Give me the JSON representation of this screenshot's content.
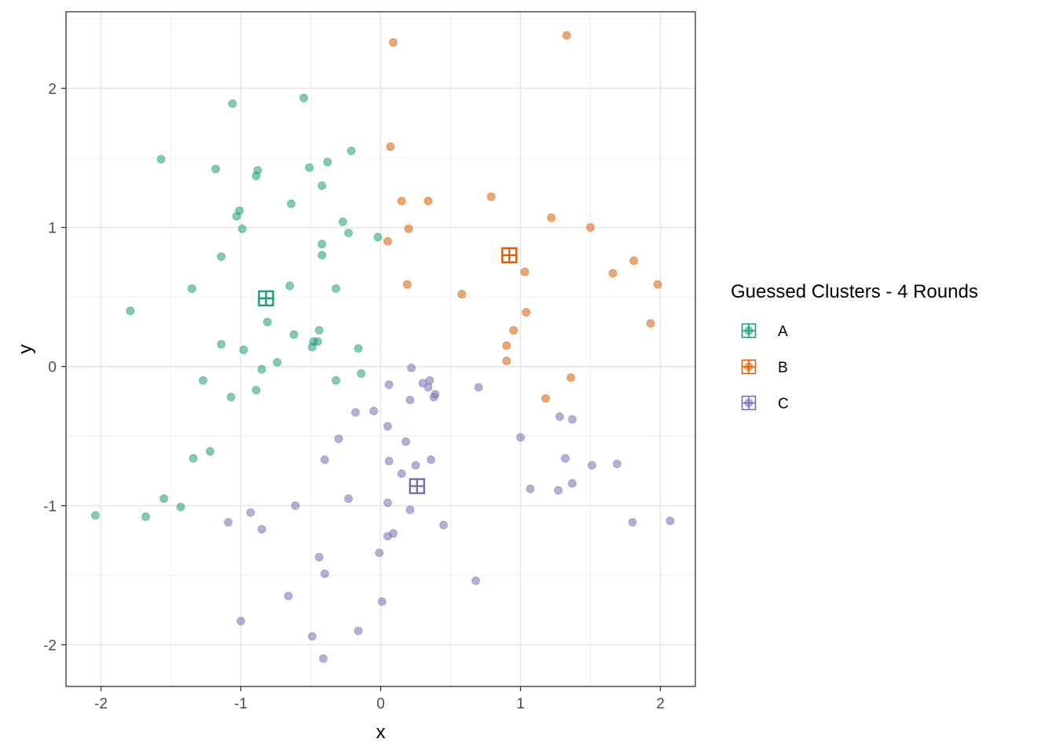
{
  "chart_data": {
    "type": "scatter",
    "xlabel": "x",
    "ylabel": "y",
    "xlim": [
      -2.25,
      2.25
    ],
    "ylim": [
      -2.3,
      2.55
    ],
    "x_ticks": [
      -2,
      -1,
      0,
      1,
      2
    ],
    "y_ticks": [
      -2,
      -1,
      0,
      1,
      2
    ],
    "x_tick_labels": [
      "-2",
      "-1",
      "0",
      "1",
      "2"
    ],
    "y_tick_labels": [
      "-2",
      "-1",
      "0",
      "1",
      "2"
    ],
    "grid": true,
    "legend": {
      "title": "Guessed Clusters - 4 Rounds",
      "placement": "right",
      "entries": [
        "A",
        "B",
        "C"
      ]
    },
    "colors": {
      "A": "#1B9E77",
      "B": "#D95F02",
      "C": "#7570B3"
    },
    "series": [
      {
        "name": "A",
        "centroid": [
          -0.82,
          0.49
        ],
        "points": [
          [
            -1.06,
            1.89
          ],
          [
            -0.55,
            1.93
          ],
          [
            -1.57,
            1.49
          ],
          [
            -1.18,
            1.42
          ],
          [
            -0.88,
            1.41
          ],
          [
            -0.89,
            1.37
          ],
          [
            -0.51,
            1.43
          ],
          [
            -0.38,
            1.47
          ],
          [
            -0.21,
            1.55
          ],
          [
            -0.42,
            1.3
          ],
          [
            -1.01,
            1.12
          ],
          [
            -1.03,
            1.08
          ],
          [
            -0.64,
            1.17
          ],
          [
            -0.99,
            0.99
          ],
          [
            -0.27,
            1.04
          ],
          [
            -0.23,
            0.96
          ],
          [
            -0.02,
            0.93
          ],
          [
            -0.42,
            0.88
          ],
          [
            -0.42,
            0.8
          ],
          [
            -1.14,
            0.79
          ],
          [
            -1.35,
            0.56
          ],
          [
            -0.65,
            0.58
          ],
          [
            -0.32,
            0.56
          ],
          [
            -1.79,
            0.4
          ],
          [
            -0.81,
            0.32
          ],
          [
            -0.44,
            0.26
          ],
          [
            -0.62,
            0.23
          ],
          [
            -0.48,
            0.18
          ],
          [
            -0.45,
            0.18
          ],
          [
            -0.49,
            0.14
          ],
          [
            -1.14,
            0.16
          ],
          [
            -0.98,
            0.12
          ],
          [
            -0.16,
            0.13
          ],
          [
            -0.74,
            0.03
          ],
          [
            -0.85,
            -0.02
          ],
          [
            -0.14,
            -0.05
          ],
          [
            -1.27,
            -0.1
          ],
          [
            -0.32,
            -0.1
          ],
          [
            -0.89,
            -0.17
          ],
          [
            -1.07,
            -0.22
          ],
          [
            -1.22,
            -0.61
          ],
          [
            -1.34,
            -0.66
          ],
          [
            -1.55,
            -0.95
          ],
          [
            -1.43,
            -1.01
          ],
          [
            -2.04,
            -1.07
          ],
          [
            -1.68,
            -1.08
          ]
        ]
      },
      {
        "name": "B",
        "centroid": [
          0.92,
          0.8
        ],
        "points": [
          [
            0.09,
            2.33
          ],
          [
            1.33,
            2.38
          ],
          [
            0.07,
            1.58
          ],
          [
            0.15,
            1.19
          ],
          [
            0.34,
            1.19
          ],
          [
            0.79,
            1.22
          ],
          [
            1.22,
            1.07
          ],
          [
            0.2,
            0.99
          ],
          [
            1.5,
            1.0
          ],
          [
            0.05,
            0.9
          ],
          [
            1.03,
            0.68
          ],
          [
            1.66,
            0.67
          ],
          [
            1.81,
            0.76
          ],
          [
            0.19,
            0.59
          ],
          [
            1.98,
            0.59
          ],
          [
            0.58,
            0.52
          ],
          [
            1.04,
            0.39
          ],
          [
            1.93,
            0.31
          ],
          [
            0.95,
            0.26
          ],
          [
            0.9,
            0.15
          ],
          [
            0.9,
            0.04
          ],
          [
            1.36,
            -0.08
          ],
          [
            1.18,
            -0.23
          ]
        ]
      },
      {
        "name": "C",
        "centroid": [
          0.26,
          -0.86
        ],
        "points": [
          [
            0.22,
            -0.01
          ],
          [
            0.35,
            -0.1
          ],
          [
            0.3,
            -0.12
          ],
          [
            0.34,
            -0.15
          ],
          [
            0.06,
            -0.13
          ],
          [
            0.7,
            -0.15
          ],
          [
            0.39,
            -0.2
          ],
          [
            0.38,
            -0.22
          ],
          [
            0.21,
            -0.24
          ],
          [
            -0.18,
            -0.33
          ],
          [
            -0.05,
            -0.32
          ],
          [
            1.28,
            -0.36
          ],
          [
            1.37,
            -0.38
          ],
          [
            0.05,
            -0.43
          ],
          [
            1.0,
            -0.51
          ],
          [
            -0.3,
            -0.52
          ],
          [
            0.18,
            -0.54
          ],
          [
            -0.4,
            -0.67
          ],
          [
            0.06,
            -0.68
          ],
          [
            0.36,
            -0.67
          ],
          [
            1.32,
            -0.66
          ],
          [
            0.25,
            -0.71
          ],
          [
            1.51,
            -0.71
          ],
          [
            1.69,
            -0.7
          ],
          [
            0.15,
            -0.77
          ],
          [
            1.37,
            -0.84
          ],
          [
            1.07,
            -0.88
          ],
          [
            1.27,
            -0.89
          ],
          [
            -0.23,
            -0.95
          ],
          [
            0.05,
            -0.98
          ],
          [
            -0.61,
            -1.0
          ],
          [
            0.21,
            -1.03
          ],
          [
            -0.93,
            -1.05
          ],
          [
            -1.09,
            -1.12
          ],
          [
            -0.85,
            -1.17
          ],
          [
            1.8,
            -1.12
          ],
          [
            2.07,
            -1.11
          ],
          [
            0.45,
            -1.14
          ],
          [
            0.09,
            -1.2
          ],
          [
            0.05,
            -1.22
          ],
          [
            -0.01,
            -1.34
          ],
          [
            -0.44,
            -1.37
          ],
          [
            -0.4,
            -1.49
          ],
          [
            0.68,
            -1.54
          ],
          [
            -0.66,
            -1.65
          ],
          [
            0.01,
            -1.69
          ],
          [
            -1.0,
            -1.83
          ],
          [
            -0.16,
            -1.9
          ],
          [
            -0.49,
            -1.94
          ],
          [
            -0.41,
            -2.1
          ]
        ]
      }
    ]
  }
}
